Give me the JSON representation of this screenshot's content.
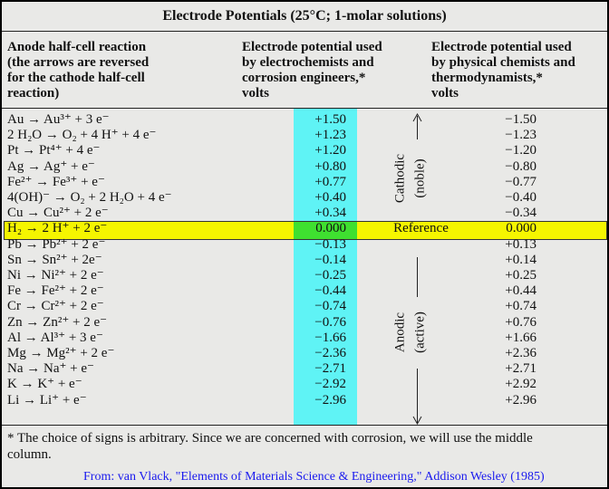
{
  "title": "Electrode Potentials (25°C; 1-molar solutions)",
  "headers": [
    [
      "Anode half-cell reaction",
      "(the arrows are reversed",
      "for the cathode half-cell",
      "reaction)"
    ],
    [
      "Electrode potential used",
      "by electrochemists and",
      "corrosion engineers,*",
      "volts"
    ],
    [
      "Electrode potential used",
      "by physical chemists and",
      "thermodynamists,*",
      "volts"
    ]
  ],
  "rows": [
    [
      "Au → Au³⁺ + 3 e⁻",
      "+1.50",
      "−1.50"
    ],
    [
      "2 H₂O → O₂ + 4 H⁺ + 4 e⁻",
      "+1.23",
      "−1.23"
    ],
    [
      "Pt → Pt⁴⁺ + 4 e⁻",
      "+1.20",
      "−1.20"
    ],
    [
      "Ag → Ag⁺ + e⁻",
      "+0.80",
      "−0.80"
    ],
    [
      "Fe²⁺ → Fe³⁺ + e⁻",
      "+0.77",
      "−0.77"
    ],
    [
      "4(OH)⁻ → O₂ + 2 H₂O + 4 e⁻",
      "+0.40",
      "−0.40"
    ],
    [
      "Cu → Cu²⁺ + 2 e⁻",
      "+0.34",
      "−0.34"
    ],
    [
      "H₂ → 2 H⁺ + 2 e⁻",
      "0.000",
      "0.000"
    ],
    [
      "Pb → Pb²⁺ + 2 e⁻",
      "−0.13",
      "+0.13"
    ],
    [
      "Sn → Sn²⁺ + 2e⁻",
      "−0.14",
      "+0.14"
    ],
    [
      "Ni → Ni²⁺ + 2 e⁻",
      "−0.25",
      "+0.25"
    ],
    [
      "Fe → Fe²⁺ + 2 e⁻",
      "−0.44",
      "+0.44"
    ],
    [
      "Cr → Cr²⁺ + 2 e⁻",
      "−0.74",
      "+0.74"
    ],
    [
      "Zn → Zn²⁺ + 2 e⁻",
      "−0.76",
      "+0.76"
    ],
    [
      "Al → Al³⁺ + 3 e⁻",
      "−1.66",
      "+1.66"
    ],
    [
      "Mg → Mg²⁺ + 2 e⁻",
      "−2.36",
      "+2.36"
    ],
    [
      "Na → Na⁺ + e⁻",
      "−2.71",
      "+2.71"
    ],
    [
      "K → K⁺ + e⁻",
      "−2.92",
      "+2.92"
    ],
    [
      "Li → Li⁺ + e⁻",
      "−2.96",
      "+2.96"
    ]
  ],
  "reference_label": "Reference",
  "side_labels": {
    "cathodic": [
      "Cathodic",
      "(noble)"
    ],
    "anodic": [
      "Anodic",
      "(active)"
    ]
  },
  "footnote": [
    "* The choice of signs is arbitrary. Since we are concerned with corrosion, we will use the middle",
    "column."
  ],
  "source": "From: van Vlack, \"Elements of Materials Science & Engineering,\" Addison Wesley (1985)"
}
